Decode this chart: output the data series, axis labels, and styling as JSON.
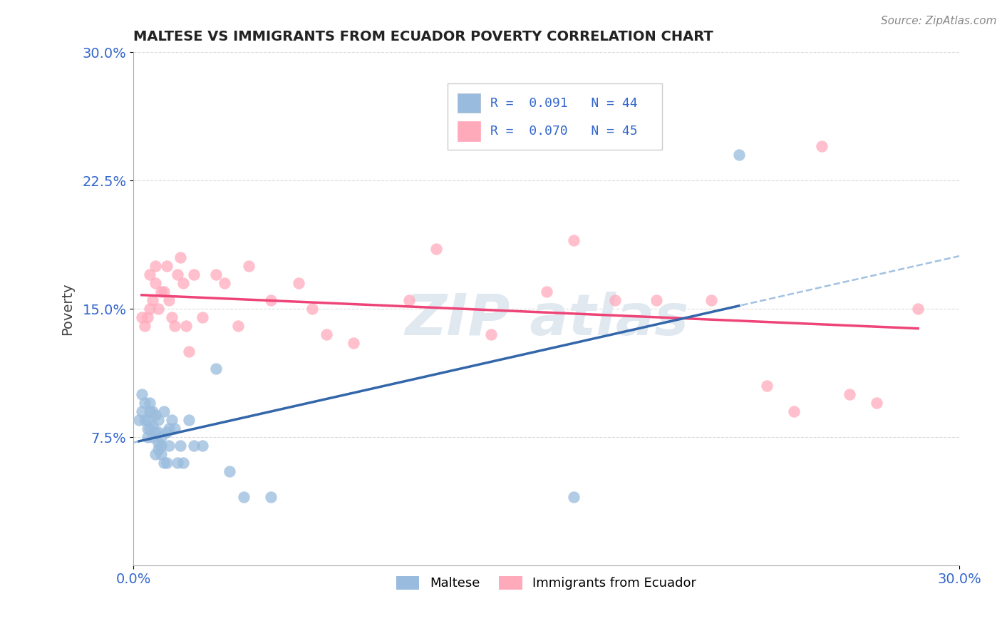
{
  "title": "MALTESE VS IMMIGRANTS FROM ECUADOR POVERTY CORRELATION CHART",
  "source": "Source: ZipAtlas.com",
  "ylabel": "Poverty",
  "xlim": [
    0.0,
    0.3
  ],
  "ylim": [
    0.0,
    0.3
  ],
  "ytick_labels": [
    "7.5%",
    "15.0%",
    "22.5%",
    "30.0%"
  ],
  "ytick_positions": [
    0.075,
    0.15,
    0.225,
    0.3
  ],
  "maltese_color": "#99BBDD",
  "ecuador_color": "#FFAABB",
  "maltese_line_color": "#3366AA",
  "ecuador_line_color": "#EE4477",
  "dashed_line_color": "#99BBDD",
  "R_maltese": "0.091",
  "N_maltese": "44",
  "R_ecuador": "0.070",
  "N_ecuador": "45",
  "maltese_x": [
    0.002,
    0.003,
    0.003,
    0.004,
    0.004,
    0.005,
    0.005,
    0.005,
    0.006,
    0.006,
    0.006,
    0.007,
    0.007,
    0.007,
    0.008,
    0.008,
    0.008,
    0.009,
    0.009,
    0.009,
    0.009,
    0.01,
    0.01,
    0.01,
    0.011,
    0.011,
    0.012,
    0.012,
    0.013,
    0.013,
    0.014,
    0.015,
    0.016,
    0.017,
    0.018,
    0.02,
    0.022,
    0.025,
    0.03,
    0.035,
    0.04,
    0.05,
    0.16,
    0.22
  ],
  "maltese_y": [
    0.085,
    0.09,
    0.1,
    0.085,
    0.095,
    0.08,
    0.075,
    0.085,
    0.09,
    0.08,
    0.095,
    0.075,
    0.082,
    0.09,
    0.065,
    0.088,
    0.078,
    0.072,
    0.068,
    0.078,
    0.085,
    0.07,
    0.065,
    0.075,
    0.06,
    0.09,
    0.06,
    0.078,
    0.07,
    0.08,
    0.085,
    0.08,
    0.06,
    0.07,
    0.06,
    0.085,
    0.07,
    0.07,
    0.115,
    0.055,
    0.04,
    0.04,
    0.04,
    0.24
  ],
  "ecuador_x": [
    0.003,
    0.004,
    0.005,
    0.006,
    0.006,
    0.007,
    0.008,
    0.008,
    0.009,
    0.01,
    0.011,
    0.012,
    0.013,
    0.014,
    0.015,
    0.016,
    0.017,
    0.018,
    0.019,
    0.02,
    0.022,
    0.025,
    0.03,
    0.033,
    0.038,
    0.042,
    0.05,
    0.06,
    0.065,
    0.07,
    0.08,
    0.1,
    0.11,
    0.13,
    0.15,
    0.16,
    0.175,
    0.19,
    0.21,
    0.23,
    0.24,
    0.25,
    0.26,
    0.27,
    0.285
  ],
  "ecuador_y": [
    0.145,
    0.14,
    0.145,
    0.15,
    0.17,
    0.155,
    0.165,
    0.175,
    0.15,
    0.16,
    0.16,
    0.175,
    0.155,
    0.145,
    0.14,
    0.17,
    0.18,
    0.165,
    0.14,
    0.125,
    0.17,
    0.145,
    0.17,
    0.165,
    0.14,
    0.175,
    0.155,
    0.165,
    0.15,
    0.135,
    0.13,
    0.155,
    0.185,
    0.135,
    0.16,
    0.19,
    0.155,
    0.155,
    0.155,
    0.105,
    0.09,
    0.245,
    0.1,
    0.095,
    0.15
  ],
  "background_color": "#FFFFFF",
  "grid_color": "#CCCCCC"
}
